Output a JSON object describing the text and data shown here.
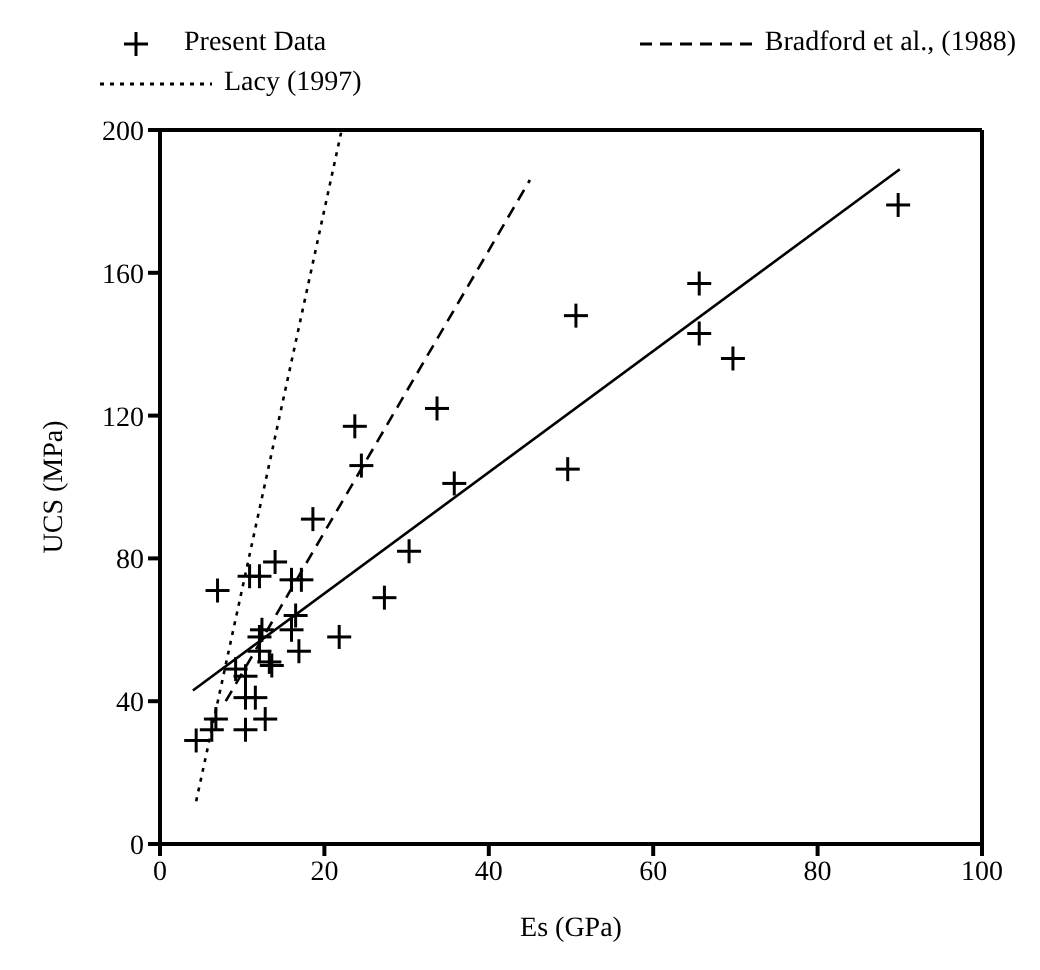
{
  "chart_data": {
    "type": "scatter",
    "xlabel": "Es (GPa)",
    "ylabel": "UCS (MPa)",
    "xlim": [
      0,
      100
    ],
    "xticks": [
      0,
      20,
      40,
      60,
      80,
      100
    ],
    "ylim": [
      0,
      200
    ],
    "yticks": [
      0,
      40,
      80,
      120,
      160,
      200
    ],
    "grid": false,
    "legend": "top",
    "series": [
      {
        "name": "Present Data",
        "marker": "cross",
        "color": "#000000",
        "x": [
          4.4,
          6.8,
          6.3,
          7.0,
          10.4,
          12.8,
          10.4,
          11.6,
          9.2,
          10.4,
          12.1,
          12.4,
          12.1,
          13.3,
          13.6,
          10.9,
          12.1,
          14.0,
          16.0,
          17.2,
          16.5,
          16.0,
          16.9,
          21.8,
          18.6,
          23.7,
          24.5,
          27.3,
          30.3,
          33.7,
          35.8,
          49.6,
          50.6,
          65.6,
          65.6,
          69.7,
          89.8
        ],
        "values": [
          29,
          35,
          32,
          71,
          32,
          35,
          41,
          41,
          49,
          47,
          58,
          60,
          54,
          51,
          50,
          75,
          75,
          79,
          74,
          74,
          64,
          60,
          54,
          58,
          91,
          117,
          106,
          69,
          82,
          122,
          101,
          105,
          148,
          157,
          143,
          136,
          179
        ]
      },
      {
        "type": "line",
        "marker": "none",
        "line_style": "solid",
        "color": "#000000",
        "x": [
          4,
          90
        ],
        "values": [
          43,
          189
        ]
      },
      {
        "name": "Bradford et al., (1988)",
        "type": "line",
        "marker": "none",
        "line_style": "dashed",
        "color": "#000000",
        "x": [
          8,
          45
        ],
        "values": [
          40,
          186
        ]
      },
      {
        "name": "Lacy (1997)",
        "type": "line",
        "marker": "none",
        "line_style": "dotted",
        "color": "#000000",
        "x": [
          4.4,
          22.1
        ],
        "values": [
          12,
          200
        ]
      }
    ]
  }
}
